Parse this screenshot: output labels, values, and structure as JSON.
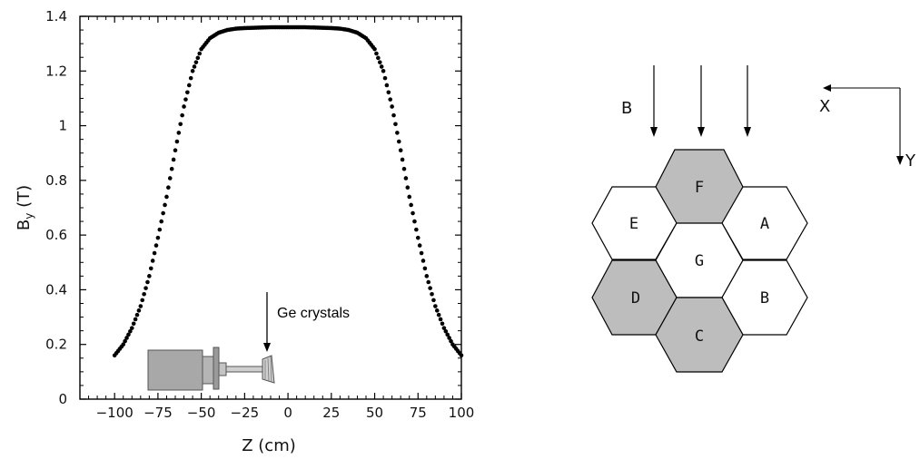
{
  "chart_data": {
    "type": "scatter",
    "xlabel": "Z (cm)",
    "ylabel_main": "B",
    "ylabel_sub": "y",
    "ylabel_unit": " (T)",
    "xlim": [
      -120,
      100
    ],
    "ylim": [
      0,
      1.4
    ],
    "xticks": [
      -100,
      -75,
      -50,
      -25,
      0,
      25,
      50,
      75,
      100
    ],
    "xtick_labels": [
      "−100",
      "−75",
      "−50",
      "−25",
      "0",
      "25",
      "50",
      "75",
      "100"
    ],
    "yticks": [
      0,
      0.2,
      0.4,
      0.6,
      0.8,
      1.0,
      1.2,
      1.4
    ],
    "ytick_labels": [
      "0",
      "0.2",
      "0.4",
      "0.6",
      "0.8",
      "1",
      "1.2",
      "1.4"
    ],
    "series": [
      {
        "x": [
          -100,
          -95,
          -90,
          -85,
          -80,
          -75,
          -70,
          -65,
          -60,
          -55,
          -50,
          -45,
          -40,
          -35,
          -30,
          -25,
          -20,
          -15,
          -10,
          -5,
          0,
          5,
          10,
          15,
          20,
          25,
          30,
          35,
          40,
          45,
          50,
          55,
          60,
          65,
          70,
          75,
          80,
          85,
          90,
          95,
          100
        ],
        "y": [
          0.16,
          0.2,
          0.26,
          0.34,
          0.45,
          0.59,
          0.74,
          0.91,
          1.07,
          1.2,
          1.28,
          1.32,
          1.34,
          1.35,
          1.355,
          1.357,
          1.358,
          1.359,
          1.36,
          1.36,
          1.36,
          1.36,
          1.36,
          1.359,
          1.358,
          1.357,
          1.355,
          1.35,
          1.34,
          1.32,
          1.28,
          1.2,
          1.07,
          0.91,
          0.74,
          0.59,
          0.45,
          0.34,
          0.26,
          0.2,
          0.16
        ]
      }
    ],
    "annotation": "Ge crystals",
    "grid": false
  },
  "diagram": {
    "field_label": "B",
    "axis_x_label": "X",
    "axis_y_label": "Y",
    "crystals": [
      {
        "label": "F",
        "shaded": true
      },
      {
        "label": "E",
        "shaded": false
      },
      {
        "label": "A",
        "shaded": false
      },
      {
        "label": "G",
        "shaded": false
      },
      {
        "label": "D",
        "shaded": true
      },
      {
        "label": "B",
        "shaded": false
      },
      {
        "label": "C",
        "shaded": true
      }
    ],
    "shade_color": "#bdbdbd",
    "line_color": "#000000"
  }
}
